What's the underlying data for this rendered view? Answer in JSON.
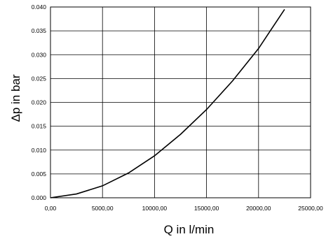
{
  "chart_data": {
    "type": "line",
    "xlabel": "Q  in l/min",
    "ylabel": "Δp  in bar",
    "xlim": [
      0,
      25000
    ],
    "ylim": [
      0,
      0.04
    ],
    "grid": true,
    "x_ticks": [
      "0,00",
      "5000,00",
      "10000,00",
      "15000,00",
      "20000,00",
      "25000,00"
    ],
    "y_ticks": [
      "0.000",
      "0.005",
      "0.010",
      "0.015",
      "0.020",
      "0.025",
      "0.030",
      "0.035",
      "0.040"
    ],
    "series": [
      {
        "x": [
          0,
          2500,
          5000,
          7500,
          10000,
          12500,
          15000,
          17500,
          20000,
          22500
        ],
        "y": [
          0.0,
          0.0008,
          0.0025,
          0.0052,
          0.0088,
          0.0133,
          0.0185,
          0.0245,
          0.0313,
          0.0395
        ]
      }
    ]
  }
}
